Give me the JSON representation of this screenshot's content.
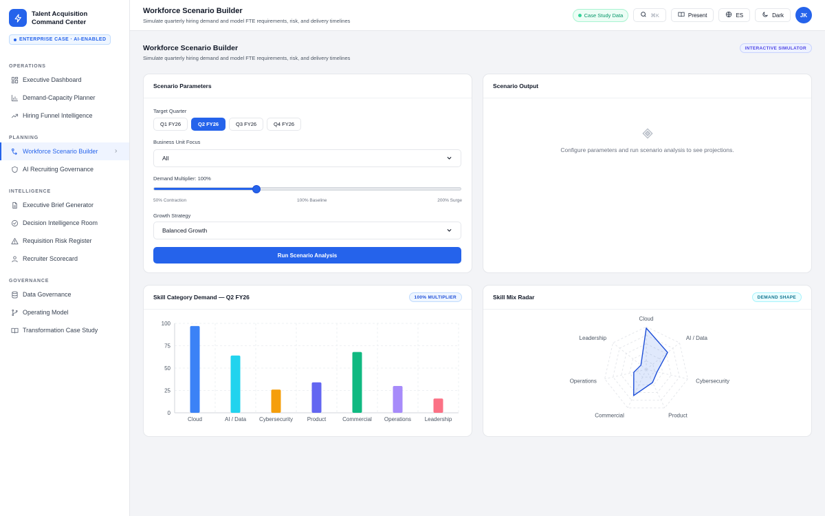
{
  "brand": {
    "title": "Talent Acquisition Command Center",
    "badge": "ENTERPRISE CASE · AI-ENABLED"
  },
  "sidebar": {
    "sections": [
      {
        "label": "OPERATIONS",
        "items": [
          {
            "label": "Executive Dashboard",
            "icon": "dashboard-icon"
          },
          {
            "label": "Demand-Capacity Planner",
            "icon": "bar-chart-icon"
          },
          {
            "label": "Hiring Funnel Intelligence",
            "icon": "trend-icon"
          }
        ]
      },
      {
        "label": "PLANNING",
        "items": [
          {
            "label": "Workforce Scenario Builder",
            "icon": "scenario-icon",
            "active": true
          },
          {
            "label": "AI Recruiting Governance",
            "icon": "shield-icon"
          }
        ]
      },
      {
        "label": "INTELLIGENCE",
        "items": [
          {
            "label": "Executive Brief Generator",
            "icon": "document-icon"
          },
          {
            "label": "Decision Intelligence Room",
            "icon": "check-circle-icon"
          },
          {
            "label": "Requisition Risk Register",
            "icon": "warning-icon"
          },
          {
            "label": "Recruiter Scorecard",
            "icon": "user-icon"
          }
        ]
      },
      {
        "label": "GOVERNANCE",
        "items": [
          {
            "label": "Data Governance",
            "icon": "database-icon"
          },
          {
            "label": "Operating Model",
            "icon": "branch-icon"
          },
          {
            "label": "Transformation Case Study",
            "icon": "book-icon"
          }
        ]
      }
    ]
  },
  "topbar": {
    "title": "Workforce Scenario Builder",
    "subtitle": "Simulate quarterly hiring demand and model FTE requirements, risk, and delivery timelines",
    "case_study": "Case Study Data",
    "search_shortcut": "⌘K",
    "present": "Present",
    "language": "ES",
    "theme": "Dark",
    "avatar": "JK"
  },
  "main": {
    "title": "Workforce Scenario Builder",
    "subtitle": "Simulate quarterly hiring demand and model FTE requirements, risk, and delivery timelines",
    "badge": "INTERACTIVE SIMULATOR"
  },
  "params": {
    "title": "Scenario Parameters",
    "quarter_label": "Target Quarter",
    "quarters": [
      "Q1 FY26",
      "Q2 FY26",
      "Q3 FY26",
      "Q4 FY26"
    ],
    "active_quarter": 1,
    "bu_label": "Business Unit Focus",
    "bu_value": "All",
    "multiplier_label": "Demand Multiplier: 100%",
    "multiplier_fraction": 0.333,
    "scale_min": "50% Contraction",
    "scale_mid": "100% Baseline",
    "scale_max": "200% Surge",
    "strategy_label": "Growth Strategy",
    "strategy_value": "Balanced Growth",
    "run_label": "Run Scenario Analysis"
  },
  "output": {
    "title": "Scenario Output",
    "empty_message": "Configure parameters and run scenario analysis to see projections."
  },
  "skill_chart": {
    "title": "Skill Category Demand — Q2 FY26",
    "badge": "100% MULTIPLIER"
  },
  "radar": {
    "title": "Skill Mix Radar",
    "badge": "DEMAND SHAPE"
  },
  "chart_data": [
    {
      "type": "bar",
      "categories": [
        "Cloud",
        "AI / Data",
        "Cybersecurity",
        "Product",
        "Commercial",
        "Operations",
        "Leadership"
      ],
      "values": [
        97,
        64,
        26,
        34,
        68,
        30,
        16
      ],
      "colors": [
        "#3b82f6",
        "#22d3ee",
        "#f59e0b",
        "#6366f1",
        "#10b981",
        "#a78bfa",
        "#fb7185"
      ],
      "ylim": [
        0,
        100
      ],
      "yticks": [
        0,
        25,
        50,
        75,
        100
      ],
      "grid": true
    },
    {
      "type": "radar",
      "categories": [
        "Cloud",
        "AI / Data",
        "Cybersecurity",
        "Product",
        "Commercial",
        "Operations",
        "Leadership"
      ],
      "values": [
        97,
        64,
        26,
        34,
        68,
        30,
        16
      ],
      "max": 100
    }
  ]
}
